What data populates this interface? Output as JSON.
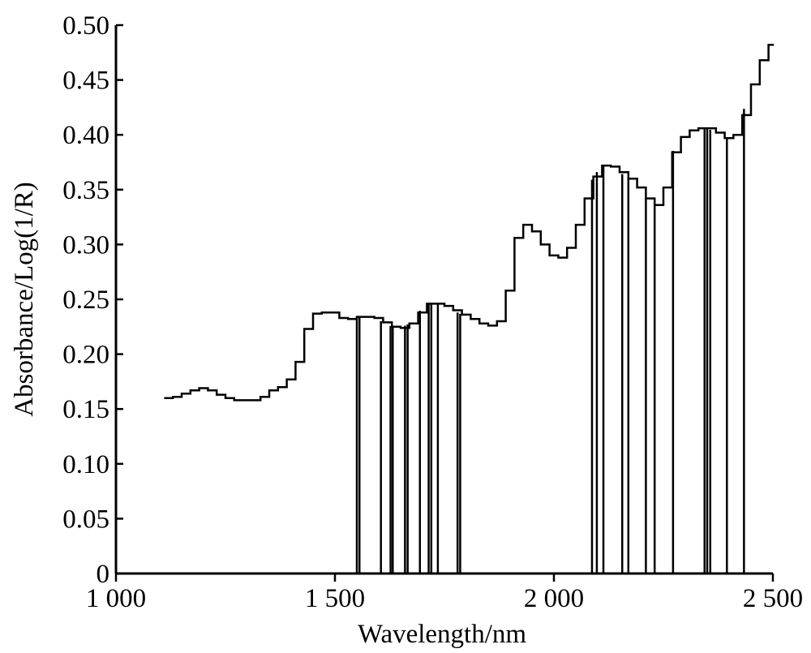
{
  "chart_data": {
    "type": "line",
    "xlabel": "Wavelength/nm",
    "ylabel": "Absorbance/Log(1/R)",
    "xlim": [
      1000,
      2500
    ],
    "ylim": [
      0,
      0.5
    ],
    "x_ticks": [
      1000,
      1500,
      2000,
      2500
    ],
    "x_tick_labels": [
      "1 000",
      "1 500",
      "2 000",
      "2 500"
    ],
    "y_ticks": [
      0,
      0.05,
      0.1,
      0.15,
      0.2,
      0.25,
      0.3,
      0.35,
      0.4,
      0.45,
      0.5
    ],
    "y_tick_labels": [
      "0",
      "0.05",
      "0.10",
      "0.15",
      "0.20",
      "0.25",
      "0.30",
      "0.35",
      "0.40",
      "0.45",
      "0.50"
    ],
    "grid": false,
    "series": [
      {
        "x": [
          1110,
          1130,
          1150,
          1170,
          1190,
          1210,
          1230,
          1250,
          1270,
          1290,
          1310,
          1330,
          1350,
          1370,
          1390,
          1410,
          1430,
          1450,
          1470,
          1490,
          1510,
          1530,
          1550,
          1570,
          1590,
          1610,
          1630,
          1650,
          1670,
          1690,
          1710,
          1730,
          1750,
          1770,
          1790,
          1810,
          1830,
          1850,
          1870,
          1890,
          1910,
          1930,
          1950,
          1970,
          1990,
          2010,
          2030,
          2050,
          2070,
          2090,
          2110,
          2130,
          2150,
          2170,
          2190,
          2210,
          2230,
          2250,
          2270,
          2290,
          2310,
          2330,
          2350,
          2370,
          2390,
          2410,
          2430,
          2450,
          2470,
          2490,
          2500
        ],
        "y": [
          0.16,
          0.161,
          0.164,
          0.167,
          0.169,
          0.167,
          0.163,
          0.16,
          0.158,
          0.158,
          0.158,
          0.161,
          0.167,
          0.17,
          0.177,
          0.193,
          0.223,
          0.237,
          0.238,
          0.238,
          0.233,
          0.232,
          0.234,
          0.234,
          0.233,
          0.229,
          0.225,
          0.224,
          0.228,
          0.238,
          0.246,
          0.246,
          0.244,
          0.24,
          0.236,
          0.232,
          0.228,
          0.226,
          0.23,
          0.258,
          0.306,
          0.318,
          0.312,
          0.3,
          0.29,
          0.288,
          0.297,
          0.318,
          0.342,
          0.362,
          0.372,
          0.371,
          0.366,
          0.36,
          0.352,
          0.342,
          0.336,
          0.352,
          0.384,
          0.398,
          0.404,
          0.406,
          0.406,
          0.402,
          0.397,
          0.4,
          0.418,
          0.446,
          0.468,
          0.482,
          0.483
        ]
      }
    ],
    "selected_wavelengths": [
      1550,
      1556,
      1605,
      1627,
      1632,
      1660,
      1666,
      1694,
      1714,
      1720,
      1735,
      1780,
      1786,
      2087,
      2098,
      2113,
      2156,
      2170,
      2210,
      2230,
      2272,
      2344,
      2350,
      2357,
      2395,
      2434
    ]
  }
}
